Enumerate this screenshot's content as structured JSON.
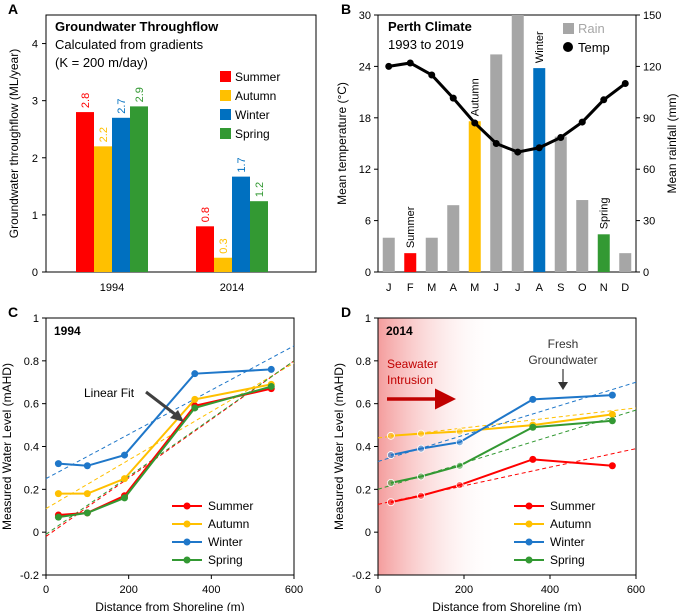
{
  "chart_data": [
    {
      "panel": "A",
      "type": "bar",
      "title": "Groundwater Throughflow",
      "subtitle_lines": [
        "Calculated from gradients",
        "(K = 200 m/day)"
      ],
      "xlabel": "",
      "ylabel": "Groundwater throughflow (ML/year)",
      "ylim": [
        0,
        4.5
      ],
      "yticks": [
        "0",
        "1",
        "2",
        "3",
        "4"
      ],
      "categories": [
        "1994",
        "2014"
      ],
      "series": [
        {
          "name": "Summer",
          "color": "#ff0000",
          "values": [
            2.8,
            0.8
          ],
          "labels": [
            "2.8",
            "0.8"
          ]
        },
        {
          "name": "Autumn",
          "color": "#ffc000",
          "values": [
            2.2,
            0.25
          ],
          "labels": [
            "2.2",
            "0.3"
          ]
        },
        {
          "name": "Winter",
          "color": "#0070c0",
          "values": [
            2.7,
            1.67
          ],
          "labels": [
            "2.7",
            "1.7"
          ]
        },
        {
          "name": "Spring",
          "color": "#339933",
          "values": [
            2.9,
            1.24
          ],
          "labels": [
            "2.9",
            "1.2"
          ]
        }
      ],
      "legend_position": "right"
    },
    {
      "panel": "B",
      "type": "bar+line",
      "title": "Perth Climate",
      "subtitle": "1993 to 2019",
      "categories": [
        "J",
        "F",
        "M",
        "A",
        "M",
        "J",
        "J",
        "A",
        "S",
        "O",
        "N",
        "D"
      ],
      "ylabel_left": "Mean temperature (°C)",
      "ylabel_right": "Mean rainfall (mm)",
      "ylim_left": [
        0,
        30
      ],
      "ylim_right": [
        0,
        150
      ],
      "yticks_left": [
        "0",
        "6",
        "12",
        "18",
        "24",
        "30"
      ],
      "yticks_right": [
        "0",
        "30",
        "60",
        "90",
        "120",
        "150"
      ],
      "rain": [
        20,
        11,
        20,
        39,
        88,
        127,
        150,
        119,
        79,
        42,
        22,
        11
      ],
      "rain_colors": [
        "#a6a6a6",
        "#ff0000",
        "#a6a6a6",
        "#a6a6a6",
        "#ffc000",
        "#a6a6a6",
        "#a6a6a6",
        "#0070c0",
        "#a6a6a6",
        "#a6a6a6",
        "#339933",
        "#a6a6a6"
      ],
      "temp": [
        24.0,
        24.4,
        23.0,
        20.3,
        17.4,
        15.0,
        14.0,
        14.5,
        15.7,
        17.5,
        20.1,
        22.0
      ],
      "season_labels": [
        {
          "month_index": 1,
          "text": "Summer"
        },
        {
          "month_index": 4,
          "text": "Autumn"
        },
        {
          "month_index": 7,
          "text": "Winter"
        },
        {
          "month_index": 10,
          "text": "Spring"
        }
      ],
      "legend": {
        "rain": "Rain",
        "temp": "Temp"
      },
      "legend_position": "top-right"
    },
    {
      "panel": "C",
      "type": "line",
      "title": "1994",
      "xlabel": "Distance from Shoreline (m)",
      "ylabel": "Measured Water Level (mAHD)",
      "xlim": [
        0,
        600
      ],
      "ylim": [
        -0.2,
        1.0
      ],
      "xticks": [
        "0",
        "200",
        "400",
        "600"
      ],
      "yticks": [
        "-0.2",
        "0",
        "0.2",
        "0.4",
        "0.6",
        "0.8",
        "1"
      ],
      "x": [
        30,
        100,
        190,
        360,
        545
      ],
      "series": [
        {
          "name": "Summer",
          "color": "#ff0000",
          "values": [
            0.08,
            0.09,
            0.17,
            0.59,
            0.67
          ],
          "fit": [
            -0.02,
            0.8
          ]
        },
        {
          "name": "Autumn",
          "color": "#ffc000",
          "values": [
            0.18,
            0.18,
            0.25,
            0.62,
            0.69
          ],
          "fit": [
            0.11,
            0.79
          ]
        },
        {
          "name": "Winter",
          "color": "#1f77c9",
          "values": [
            0.32,
            0.31,
            0.36,
            0.74,
            0.76
          ],
          "fit": [
            0.25,
            0.87
          ]
        },
        {
          "name": "Spring",
          "color": "#339933",
          "values": [
            0.07,
            0.09,
            0.16,
            0.58,
            0.68
          ],
          "fit": [
            -0.01,
            0.8
          ]
        }
      ],
      "annotation": "Linear Fit",
      "legend_position": "bottom-right"
    },
    {
      "panel": "D",
      "type": "line",
      "title": "2014",
      "xlabel": "Distance from Shoreline (m)",
      "ylabel": "Measured Water Level (mAHD)",
      "xlim": [
        0,
        600
      ],
      "ylim": [
        -0.2,
        1.0
      ],
      "xticks": [
        "0",
        "200",
        "400",
        "600"
      ],
      "yticks": [
        "-0.2",
        "0",
        "0.2",
        "0.4",
        "0.6",
        "0.8",
        "1"
      ],
      "x": [
        30,
        100,
        190,
        360,
        545
      ],
      "series": [
        {
          "name": "Summer",
          "color": "#ff0000",
          "values": [
            0.14,
            0.17,
            0.22,
            0.34,
            0.31
          ],
          "fit": [
            0.13,
            0.39
          ]
        },
        {
          "name": "Autumn",
          "color": "#ffc000",
          "values": [
            0.45,
            0.46,
            0.47,
            0.5,
            0.55
          ],
          "fit": [
            0.44,
            0.58
          ]
        },
        {
          "name": "Winter",
          "color": "#1f77c9",
          "values": [
            0.36,
            0.39,
            0.42,
            0.62,
            0.64
          ],
          "fit": [
            0.33,
            0.7
          ]
        },
        {
          "name": "Spring",
          "color": "#339933",
          "values": [
            0.23,
            0.26,
            0.31,
            0.49,
            0.52
          ],
          "fit": [
            0.2,
            0.57
          ]
        }
      ],
      "annotations": [
        "Seawater",
        "Intrusion",
        "Fresh",
        "Groundwater"
      ],
      "legend_position": "bottom-right"
    }
  ],
  "panel_letters": [
    "A",
    "B",
    "C",
    "D"
  ]
}
